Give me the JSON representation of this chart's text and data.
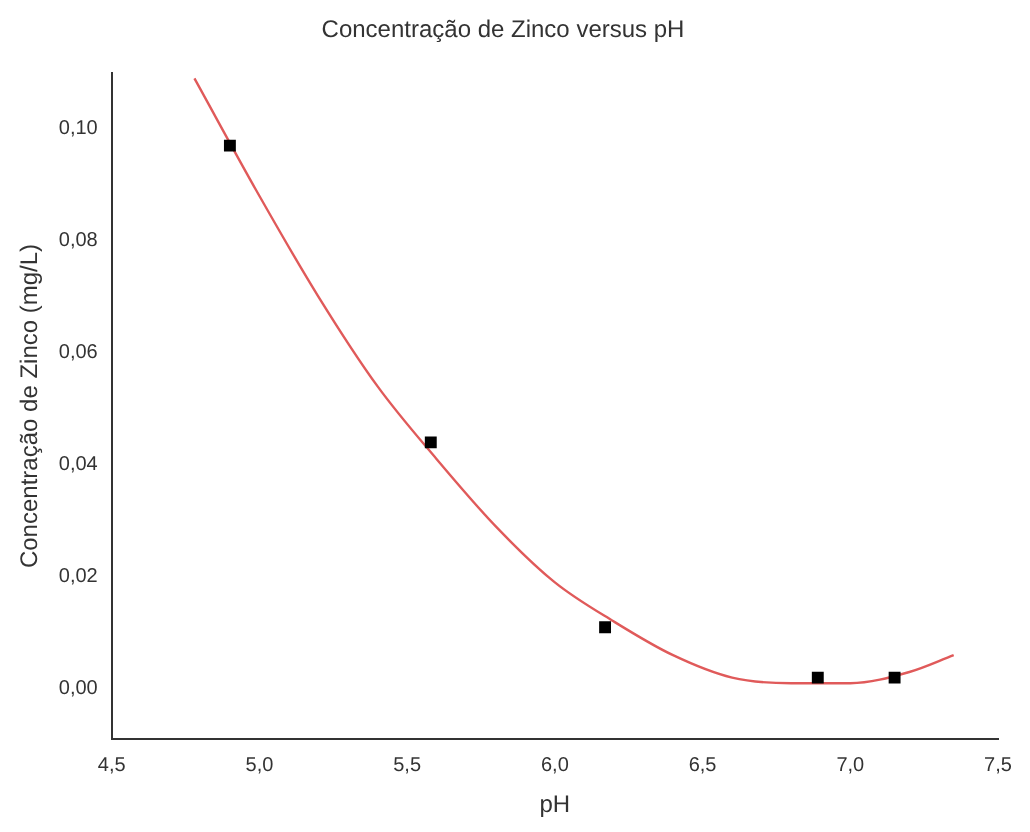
{
  "chart_data": {
    "type": "scatter",
    "title": "Concentração de Zinco versus pH",
    "xlabel": "pH",
    "ylabel": "Concentração de Zinco (mg/L)",
    "xlim": [
      4.5,
      7.5
    ],
    "ylim": [
      -0.009,
      0.11
    ],
    "xticks": [
      {
        "value": 4.5,
        "label": "4,5"
      },
      {
        "value": 5.0,
        "label": "5,0"
      },
      {
        "value": 5.5,
        "label": "5,5"
      },
      {
        "value": 6.0,
        "label": "6,0"
      },
      {
        "value": 6.5,
        "label": "6,5"
      },
      {
        "value": 7.0,
        "label": "7,0"
      },
      {
        "value": 7.5,
        "label": "7,5"
      }
    ],
    "yticks": [
      {
        "value": 0,
        "label": "0,00"
      },
      {
        "value": 0.02,
        "label": "0,02"
      },
      {
        "value": 0.04,
        "label": "0,04"
      },
      {
        "value": 0.06,
        "label": "0,06"
      },
      {
        "value": 0.08,
        "label": "0,08"
      },
      {
        "value": 0.1,
        "label": "0,10"
      }
    ],
    "grid": false,
    "marker": "square",
    "series": [
      {
        "color": "#000000",
        "x": [
          4.9,
          5.58,
          6.17,
          6.89,
          7.15
        ],
        "values": [
          0.097,
          0.044,
          0.011,
          0.002,
          0.002
        ]
      },
      {
        "type": "line",
        "color": "#e05a5a",
        "marker": "none",
        "line_style": "solid",
        "x": [
          4.78,
          5.0,
          5.2,
          5.4,
          5.6,
          5.8,
          6.0,
          6.2,
          6.4,
          6.6,
          6.8,
          7.0,
          7.2,
          7.35
        ],
        "values": [
          0.109,
          0.088,
          0.07,
          0.054,
          0.041,
          0.029,
          0.019,
          0.012,
          0.006,
          0.002,
          0.001,
          0.001,
          0.003,
          0.006
        ]
      }
    ]
  }
}
